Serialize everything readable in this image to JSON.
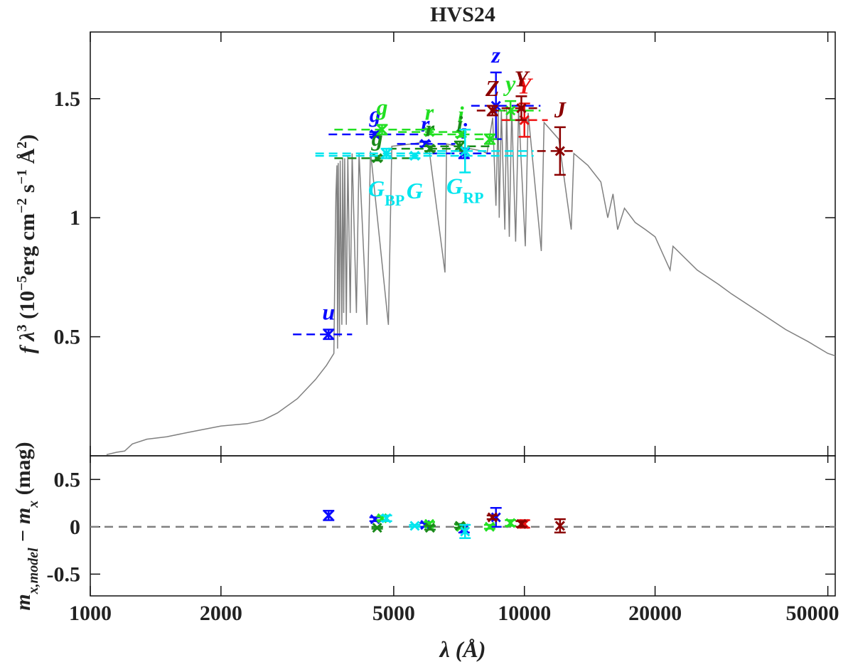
{
  "chart_data": {
    "type": "sed",
    "title": "HVS24",
    "xlabel": "λ (Å)",
    "xlog": true,
    "xlim": [
      1000,
      52000
    ],
    "xticks": [
      1000,
      2000,
      5000,
      10000,
      20000,
      50000
    ],
    "ylim": [
      0,
      1.78
    ],
    "yticks": [
      0.5,
      1,
      1.5
    ],
    "ylabel_parts": [
      {
        "text": "f λ"
      },
      {
        "text": "3",
        "sup": true
      },
      {
        "text": " (10"
      },
      {
        "text": "−5",
        "sup": true
      },
      {
        "text": "erg cm"
      },
      {
        "text": "−2",
        "sup": true
      },
      {
        "text": " s"
      },
      {
        "text": "−1",
        "sup": true
      },
      {
        "text": " Å"
      },
      {
        "text": "2",
        "sup": true
      },
      {
        "text": ")"
      }
    ],
    "residual_ylim": [
      -0.73,
      0.75
    ],
    "residual_yticks": [
      0.5,
      0,
      -0.5
    ],
    "residual_zero": 0,
    "residual_ylabel_parts": [
      {
        "text": "m"
      },
      {
        "text": "x,model",
        "sub": true
      },
      {
        "text": " − m"
      },
      {
        "text": "x",
        "sub": true
      },
      {
        "text": " (mag)"
      }
    ],
    "spectrum": {
      "color": "#808080",
      "x": [
        1090,
        1150,
        1200,
        1250,
        1350,
        1500,
        1700,
        2000,
        2300,
        2500,
        2700,
        3000,
        3300,
        3500,
        3640,
        3660,
        3680,
        3700,
        3712,
        3725,
        3750,
        3765,
        3798,
        3815,
        3835,
        3855,
        3889,
        3920,
        3970,
        4010,
        4102,
        4160,
        4340,
        4420,
        4861,
        4950,
        5500,
        6000,
        6563,
        6620,
        7000,
        7500,
        8000,
        8200,
        8300,
        8450,
        8600,
        8700,
        8750,
        8850,
        9015,
        9100,
        9230,
        9350,
        9546,
        9700,
        10049,
        10200,
        10938,
        11100,
        12000,
        12818,
        13000,
        14000,
        15000,
        15560,
        16000,
        16400,
        17000,
        18000,
        19000,
        20000,
        21655,
        22000,
        25000,
        28000,
        30000,
        35000,
        40000,
        45000,
        50000,
        52000
      ],
      "y": [
        0.005,
        0.015,
        0.02,
        0.05,
        0.07,
        0.08,
        0.1,
        0.125,
        0.135,
        0.15,
        0.18,
        0.24,
        0.32,
        0.38,
        0.43,
        0.8,
        1.1,
        1.22,
        0.45,
        1.23,
        0.5,
        1.24,
        0.55,
        1.25,
        0.6,
        1.25,
        0.55,
        1.26,
        0.6,
        1.27,
        0.6,
        1.27,
        0.55,
        1.28,
        0.55,
        1.3,
        1.31,
        1.32,
        0.77,
        1.31,
        1.3,
        1.29,
        1.28,
        1.27,
        1.33,
        1.42,
        1.05,
        1.45,
        1.0,
        1.45,
        0.95,
        1.46,
        0.92,
        1.46,
        0.9,
        1.46,
        0.88,
        1.44,
        0.86,
        1.4,
        1.33,
        0.95,
        1.27,
        1.22,
        1.15,
        1.0,
        1.1,
        0.95,
        1.04,
        0.98,
        0.95,
        0.92,
        0.78,
        0.88,
        0.78,
        0.72,
        0.68,
        0.6,
        0.53,
        0.48,
        0.43,
        0.42
      ]
    },
    "photometry": [
      {
        "band": "u",
        "color": "#0a0aff",
        "wavelength": 3540,
        "range": [
          2930,
          4010
        ],
        "flux": 0.51,
        "flux_err": 0.02,
        "residual": 0.12,
        "residual_err": 0.05
      },
      {
        "band": "g",
        "color": "#0a0aff",
        "wavelength": 4530,
        "range": [
          3540,
          5770
        ],
        "flux": 1.35,
        "flux_err": 0.01,
        "residual": 0.08,
        "residual_err": 0.02
      },
      {
        "band": "r",
        "color": "#0a0aff",
        "wavelength": 5910,
        "range": [
          5090,
          6930
        ],
        "flux": 1.31,
        "flux_err": 0.01,
        "residual": 0.02,
        "residual_err": 0.02
      },
      {
        "band": "i",
        "color": "#0a0aff",
        "wavelength": 7260,
        "range": [
          6140,
          8370
        ],
        "flux": 1.27,
        "flux_err": 0.02,
        "residual": -0.02,
        "residual_err": 0.04
      },
      {
        "band": "z",
        "color": "#0a0aff",
        "wavelength": 8600,
        "range": [
          7540,
          10890
        ],
        "flux": 1.47,
        "flux_err": 0.14,
        "residual": 0.1,
        "residual_err": 0.1
      },
      {
        "band": "g",
        "color": "#22e022",
        "wavelength": 4700,
        "range": [
          3650,
          5960
        ],
        "flux": 1.37,
        "flux_err": 0.02,
        "residual": 0.09,
        "residual_err": 0.02
      },
      {
        "band": "r",
        "color": "#22e022",
        "wavelength": 6040,
        "range": [
          5120,
          7200
        ],
        "flux": 1.36,
        "flux_err": 0.01,
        "residual": 0.03,
        "residual_err": 0.02
      },
      {
        "band": "i",
        "color": "#22e022",
        "wavelength": 7140,
        "range": [
          6190,
          8370
        ],
        "flux": 1.35,
        "flux_err": 0.01,
        "residual": 0.0,
        "residual_err": 0.02
      },
      {
        "color": "#22e022",
        "wavelength": 8320,
        "range": [
          7700,
          8870
        ],
        "flux": 1.33,
        "flux_err": 0.02,
        "residual": 0.0,
        "residual_err": 0.02
      },
      {
        "band": "y",
        "color": "#22e022",
        "wavelength": 9290,
        "range": [
          8700,
          10890
        ],
        "flux": 1.45,
        "flux_err": 0.04,
        "residual": 0.04,
        "residual_err": 0.03
      },
      {
        "band": "g",
        "color": "#1a8a1a",
        "wavelength": 4580,
        "range": [
          3650,
          5630
        ],
        "flux": 1.25,
        "flux_err": 0.01,
        "residual": -0.01,
        "residual_err": 0.01
      },
      {
        "band": "r",
        "color": "#1a8a1a",
        "wavelength": 6060,
        "range": [
          4850,
          7200
        ],
        "flux": 1.29,
        "flux_err": 0.01,
        "residual": -0.01,
        "residual_err": 0.02
      },
      {
        "band": "i",
        "color": "#1a8a1a",
        "wavelength": 7100,
        "range": [
          5960,
          8370
        ],
        "flux": 1.3,
        "flux_err": 0.02,
        "residual": 0.01,
        "residual_err": 0.02
      },
      {
        "band": "G",
        "sub": "BP",
        "color": "#00e5ee",
        "wavelength": 4810,
        "range": [
          3300,
          6800
        ],
        "flux": 1.27,
        "flux_err": 0.02,
        "residual": 0.09,
        "residual_err": 0.03
      },
      {
        "band": "G",
        "color": "#00e5ee",
        "wavelength": 5590,
        "range": [
          3300,
          10500
        ],
        "flux": 1.26,
        "flux_err": 0.01,
        "residual": 0.01,
        "residual_err": 0.01
      },
      {
        "band": "G",
        "sub": "RP",
        "color": "#00e5ee",
        "wavelength": 7300,
        "range": [
          6300,
          10500
        ],
        "flux": 1.28,
        "flux_err": 0.09,
        "residual": -0.05,
        "residual_err": 0.07
      },
      {
        "band": "Y",
        "color": "#ee1111",
        "wavelength": 10000,
        "range": [
          8860,
          11320
        ],
        "flux": 1.41,
        "flux_err": 0.07,
        "residual": 0.03,
        "residual_err": 0.04
      },
      {
        "band": "Z",
        "color": "#8b0000",
        "wavelength": 8440,
        "range": [
          7770,
          9000
        ],
        "flux": 1.45,
        "flux_err": 0.02,
        "residual": 0.1,
        "residual_err": 0.02
      },
      {
        "band": "Y",
        "color": "#8b0000",
        "wavelength": 9840,
        "range": [
          8860,
          10700
        ],
        "flux": 1.46,
        "flux_err": 0.05,
        "residual": 0.03,
        "residual_err": 0.03
      },
      {
        "band": "J",
        "color": "#8b0000",
        "wavelength": 12080,
        "range": [
          10700,
          13150
        ],
        "flux": 1.28,
        "flux_err": 0.1,
        "residual": 0.01,
        "residual_err": 0.07
      }
    ]
  }
}
